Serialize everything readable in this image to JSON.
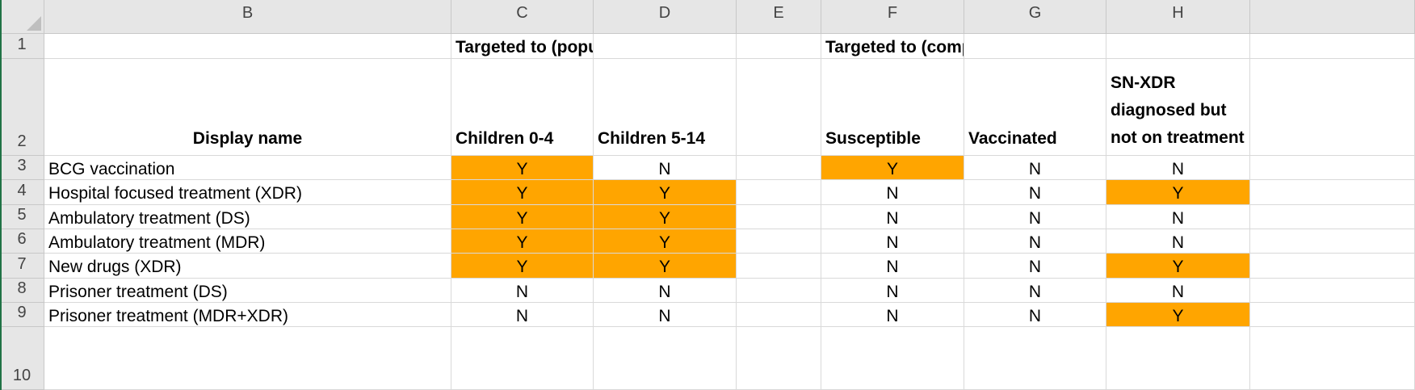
{
  "columns": [
    "B",
    "C",
    "D",
    "E",
    "F",
    "G",
    "H"
  ],
  "rows": [
    "1",
    "2",
    "3",
    "4",
    "5",
    "6",
    "7",
    "8",
    "9",
    "10"
  ],
  "header_row1": {
    "populations": "Targeted to (populations)",
    "compartments": "Targeted to (compartments)"
  },
  "header_row2": {
    "display_name": "Display name",
    "children_0_4": "Children 0-4",
    "children_5_14": "Children 5-14",
    "susceptible": "Susceptible",
    "vaccinated": "Vaccinated",
    "sn_xdr": "SN-XDR\ndiagnosed but\nnot on treatment"
  },
  "data_rows": [
    {
      "name": "BCG vaccination",
      "c": "Y",
      "d": "N",
      "f": "Y",
      "g": "N",
      "h": "N"
    },
    {
      "name": "Hospital focused treatment (XDR)",
      "c": "Y",
      "d": "Y",
      "f": "N",
      "g": "N",
      "h": "Y"
    },
    {
      "name": "Ambulatory treatment (DS)",
      "c": "Y",
      "d": "Y",
      "f": "N",
      "g": "N",
      "h": "N"
    },
    {
      "name": "Ambulatory treatment (MDR)",
      "c": "Y",
      "d": "Y",
      "f": "N",
      "g": "N",
      "h": "N"
    },
    {
      "name": "New drugs (XDR)",
      "c": "Y",
      "d": "Y",
      "f": "N",
      "g": "N",
      "h": "Y"
    },
    {
      "name": "Prisoner treatment (DS)",
      "c": "N",
      "d": "N",
      "f": "N",
      "g": "N",
      "h": "N"
    },
    {
      "name": "Prisoner treatment (MDR+XDR)",
      "c": "N",
      "d": "N",
      "f": "N",
      "g": "N",
      "h": "Y"
    }
  ],
  "colors": {
    "highlight": "#ffa500",
    "header_bg": "#e6e6e6",
    "gridline": "#d9d9d9",
    "excel_green": "#217346"
  }
}
